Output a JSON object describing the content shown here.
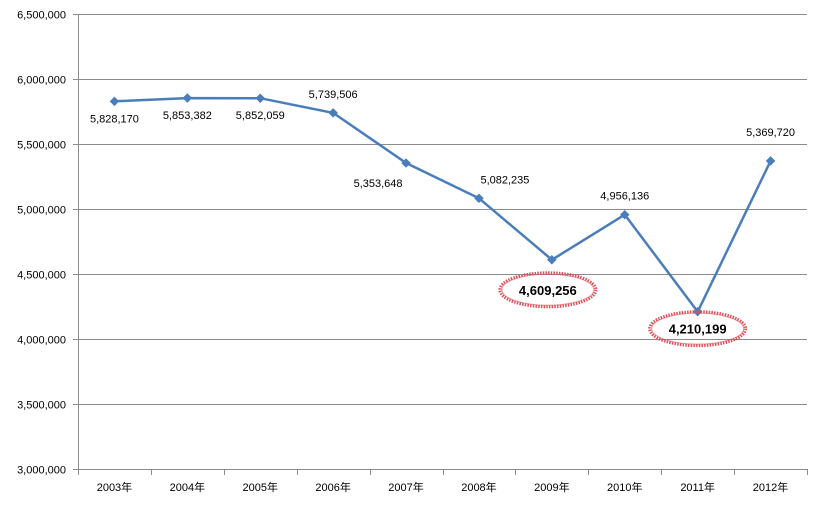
{
  "chart_data": {
    "type": "line",
    "categories": [
      "2003年",
      "2004年",
      "2005年",
      "2006年",
      "2007年",
      "2008年",
      "2009年",
      "2010年",
      "2011年",
      "2012年"
    ],
    "series": [
      {
        "values": [
          5828170,
          5853382,
          5852059,
          5739506,
          5353648,
          5082235,
          4609256,
          4956136,
          4210199,
          5369720
        ],
        "data_labels": [
          "5,828,170",
          "5,853,382",
          "5,852,059",
          "5,739,506",
          "5,353,648",
          "5,082,235",
          "4,609,256",
          "4,956,136",
          "4,210,199",
          "5,369,720"
        ]
      }
    ],
    "ylim": [
      3000000,
      6500000
    ],
    "y_ticks": [
      "3,000,000",
      "3,500,000",
      "4,000,000",
      "4,500,000",
      "5,000,000",
      "5,500,000",
      "6,000,000",
      "6,500,000"
    ],
    "grid": true,
    "legend": "none",
    "highlighted": [
      "2009年",
      "2011年"
    ],
    "title": "",
    "xlabel": "",
    "ylabel": ""
  },
  "colors": {
    "line": "#4a7ebb",
    "marker": "#4a7ebb",
    "highlight": "#e0505a"
  }
}
